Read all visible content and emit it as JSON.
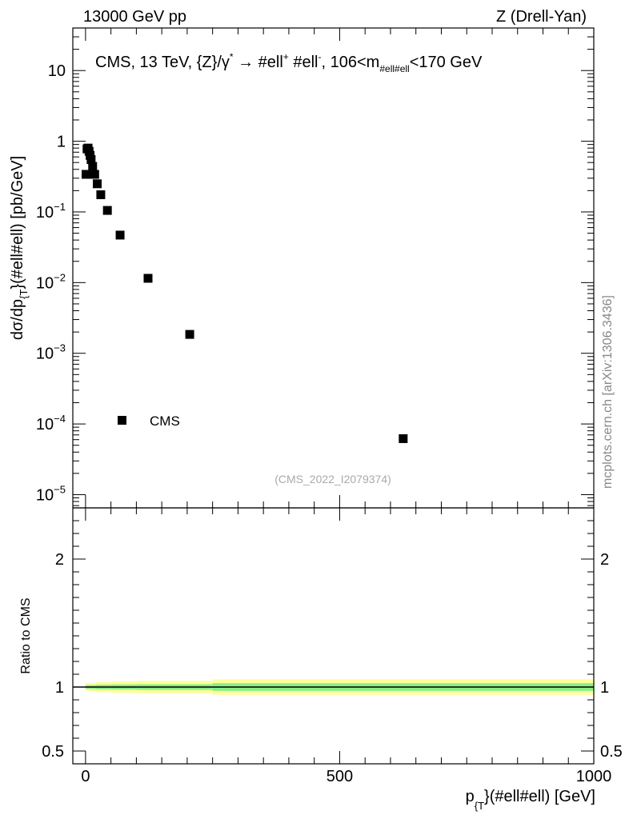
{
  "header": {
    "left": "13000 GeV pp",
    "right": "Z (Drell-Yan)"
  },
  "watermark": "mcplots.cern.ch [arXiv:1306.3436]",
  "chart_data": [
    {
      "panel": "main",
      "type": "scatter",
      "title_parts": {
        "prefix": "CMS, 13 TeV, {Z}/γ",
        "sup1": "*",
        "arrow": " →  #ell",
        "sup2": "+",
        "mid": " #ell",
        "sup3": "-",
        "mid2": ", 106<m",
        "sub": "#ell#ell",
        "suffix": "<170 GeV"
      },
      "ylabel_parts": {
        "a": "dσ/dp",
        "sub": "{T",
        "b": "}(#ell#ell) [pb/GeV]"
      },
      "yscale": "log",
      "ylim": [
        6.5e-06,
        40
      ],
      "xlim": [
        -25,
        1000
      ],
      "ytick_labels": [
        {
          "value": 10,
          "mant": "10",
          "exp": ""
        },
        {
          "value": 1,
          "mant": "1",
          "exp": ""
        },
        {
          "value": 0.1,
          "mant": "10",
          "exp": "−1"
        },
        {
          "value": 0.01,
          "mant": "10",
          "exp": "−2"
        },
        {
          "value": 0.001,
          "mant": "10",
          "exp": "−3"
        },
        {
          "value": 0.0001,
          "mant": "10",
          "exp": "−4"
        },
        {
          "value": 1e-05,
          "mant": "10",
          "exp": "−5"
        }
      ],
      "series": [
        {
          "name": "CMS",
          "marker": "square",
          "color": "#000000",
          "x": [
            1,
            3,
            5,
            7,
            9,
            11,
            14,
            18,
            23,
            30,
            43,
            68,
            123,
            205,
            625
          ],
          "y": [
            0.34,
            0.78,
            0.8,
            0.72,
            0.63,
            0.55,
            0.44,
            0.34,
            0.25,
            0.175,
            0.105,
            0.047,
            0.0115,
            0.00185,
            6.2e-05
          ]
        }
      ],
      "legend": {
        "label": "CMS",
        "location": "lower-left"
      },
      "analysis_id": "(CMS_2022_I2079374)"
    },
    {
      "panel": "ratio",
      "type": "area",
      "ylabel": "Ratio to CMS",
      "ylim": [
        0.4,
        2.4
      ],
      "xlim": [
        -25,
        1000
      ],
      "ytick_labels": [
        {
          "value": 2,
          "label": "2"
        },
        {
          "value": 1,
          "label": "1"
        },
        {
          "value": 0.5,
          "label": "0.5"
        }
      ],
      "xtick_labels": [
        {
          "value": 0,
          "label": "0"
        },
        {
          "value": 500,
          "label": "500"
        },
        {
          "value": 1000,
          "label": "1000"
        }
      ],
      "xlabel_parts": {
        "a": "p",
        "sub": "{T",
        "b": "}(#ell#ell) [GeV]"
      },
      "bin_edges": [
        0,
        20,
        50,
        100,
        250,
        1000
      ],
      "band_outer": {
        "color": "#ffff99",
        "lo": [
          0.968,
          0.96,
          0.955,
          0.952,
          0.94
        ],
        "hi": [
          1.032,
          1.04,
          1.045,
          1.048,
          1.06
        ]
      },
      "band_inner": {
        "color": "#88ee88",
        "lo": [
          0.985,
          0.982,
          0.98,
          0.978,
          0.97
        ],
        "hi": [
          1.015,
          1.018,
          1.02,
          1.022,
          1.03
        ]
      },
      "reference_line": 1
    }
  ]
}
